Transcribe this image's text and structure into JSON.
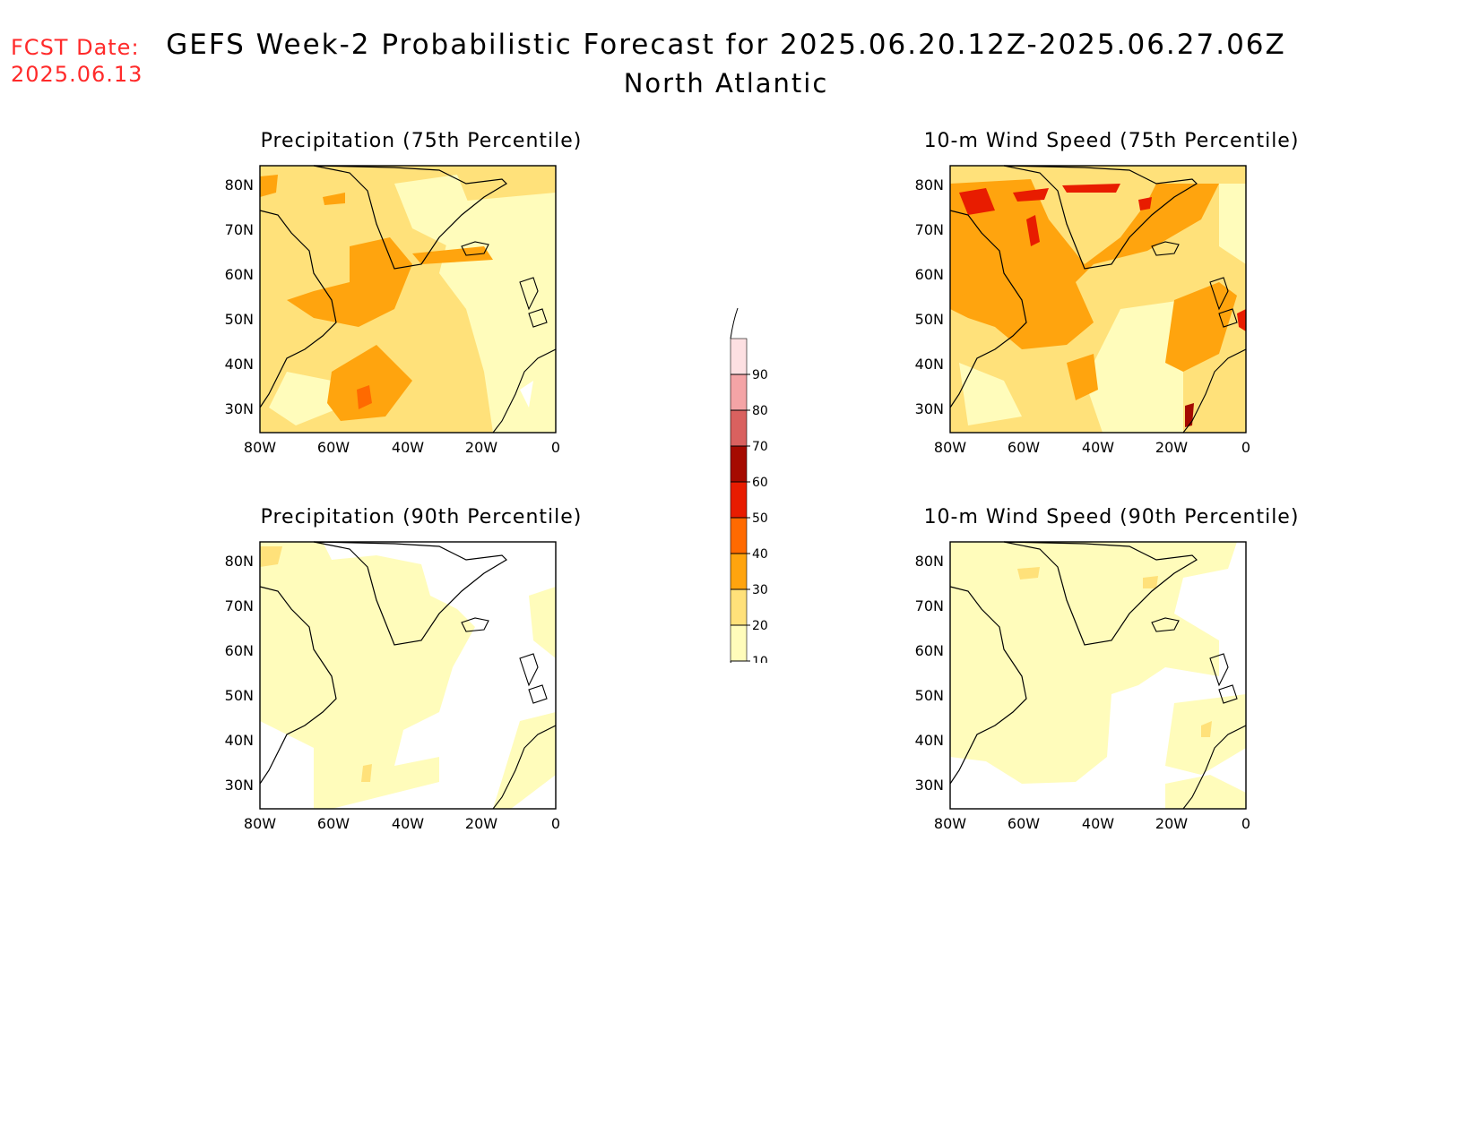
{
  "header": {
    "fcst_label": "FCST Date:",
    "fcst_date": "2025.06.13",
    "title": "GEFS Week-2 Probabilistic Forecast for 2025.06.20.12Z-2025.06.27.06Z",
    "region": "North Atlantic"
  },
  "axes": {
    "lat_labels": [
      "80N",
      "70N",
      "60N",
      "50N",
      "40N",
      "30N"
    ],
    "lon_labels": [
      "80W",
      "60W",
      "40W",
      "20W",
      "0"
    ]
  },
  "panels": [
    {
      "title": "Precipitation (75th Percentile)"
    },
    {
      "title": "10-m Wind Speed (75th Percentile)"
    },
    {
      "title": "Precipitation (90th Percentile)"
    },
    {
      "title": "10-m Wind Speed (90th Percentile)"
    }
  ],
  "colorbar": {
    "levels": [
      "10",
      "20",
      "30",
      "40",
      "50",
      "60",
      "70",
      "80",
      "90"
    ],
    "colors": [
      "#fffcbb",
      "#ffe17a",
      "#ffa40e",
      "#ff6a00",
      "#e81c00",
      "#a50a00",
      "#d9615f",
      "#f4a4a6",
      "#fde0e2"
    ]
  },
  "colors": {
    "lightest": "#fffcbb",
    "light": "#ffe17a",
    "orange": "#ffa40e",
    "dark_orange": "#ff6a00",
    "red": "#e81c00"
  }
}
